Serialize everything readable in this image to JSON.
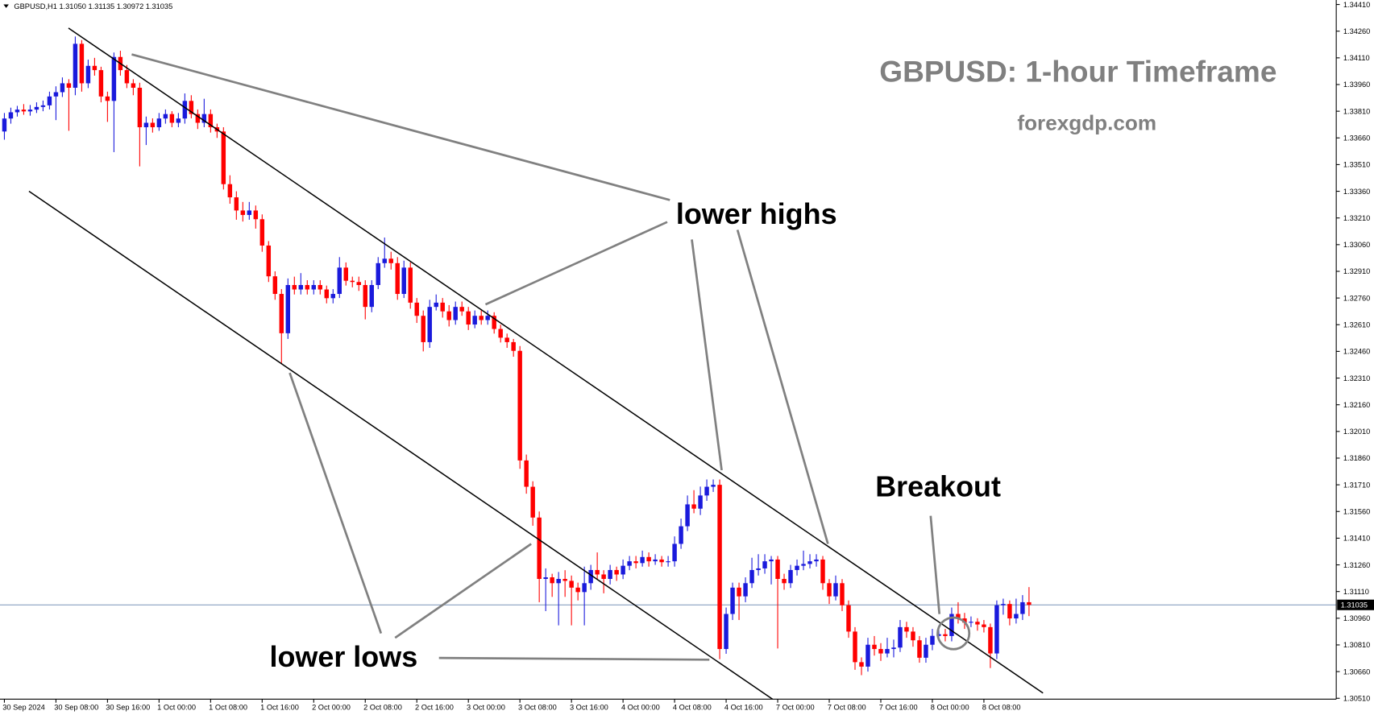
{
  "chart_data": {
    "type": "candlestick",
    "header": "GBPUSD,H1  1.31050 1.31135 1.30972 1.31035",
    "title": "GBPUSD: 1-hour Timeframe",
    "subtitle": "forexgdp.com",
    "annotations": [
      "lower highs",
      "lower lows",
      "Breakout"
    ],
    "up_color": "#1a1adc",
    "down_color": "#ff0000",
    "ylim": [
      1.30505,
      1.34435
    ],
    "yticks": [
      {
        "value": 1.3441,
        "label": "1.34410"
      },
      {
        "value": 1.3426,
        "label": "1.34260"
      },
      {
        "value": 1.3411,
        "label": "1.34110"
      },
      {
        "value": 1.3396,
        "label": "1.33960"
      },
      {
        "value": 1.3381,
        "label": "1.33810"
      },
      {
        "value": 1.3366,
        "label": "1.33660"
      },
      {
        "value": 1.3351,
        "label": "1.33510"
      },
      {
        "value": 1.3336,
        "label": "1.33360"
      },
      {
        "value": 1.3321,
        "label": "1.33210"
      },
      {
        "value": 1.3306,
        "label": "1.33060"
      },
      {
        "value": 1.3291,
        "label": "1.32910"
      },
      {
        "value": 1.3276,
        "label": "1.32760"
      },
      {
        "value": 1.3261,
        "label": "1.32610"
      },
      {
        "value": 1.3246,
        "label": "1.32460"
      },
      {
        "value": 1.3231,
        "label": "1.32310"
      },
      {
        "value": 1.3216,
        "label": "1.32160"
      },
      {
        "value": 1.3201,
        "label": "1.32010"
      },
      {
        "value": 1.3186,
        "label": "1.31860"
      },
      {
        "value": 1.3171,
        "label": "1.31710"
      },
      {
        "value": 1.3156,
        "label": "1.31560"
      },
      {
        "value": 1.3141,
        "label": "1.31410"
      },
      {
        "value": 1.3126,
        "label": "1.31260"
      },
      {
        "value": 1.3111,
        "label": "1.31110"
      },
      {
        "value": 1.3096,
        "label": "1.30960"
      },
      {
        "value": 1.3081,
        "label": "1.30810"
      },
      {
        "value": 1.3066,
        "label": "1.30660"
      },
      {
        "value": 1.3051,
        "label": "1.30510"
      }
    ],
    "last_price": {
      "value": 1.31035,
      "label": "1.31035"
    },
    "categories": [
      "30 Sep 2024",
      null,
      null,
      null,
      null,
      null,
      null,
      null,
      "30 Sep 08:00",
      null,
      null,
      null,
      null,
      null,
      null,
      null,
      "30 Sep 16:00",
      null,
      null,
      null,
      null,
      null,
      null,
      null,
      "1 Oct 00:00",
      null,
      null,
      null,
      null,
      null,
      null,
      null,
      "1 Oct 08:00",
      null,
      null,
      null,
      null,
      null,
      null,
      null,
      "1 Oct 16:00",
      null,
      null,
      null,
      null,
      null,
      null,
      null,
      "2 Oct 00:00",
      null,
      null,
      null,
      null,
      null,
      null,
      null,
      "2 Oct 08:00",
      null,
      null,
      null,
      null,
      null,
      null,
      null,
      "2 Oct 16:00",
      null,
      null,
      null,
      null,
      null,
      null,
      null,
      "3 Oct 00:00",
      null,
      null,
      null,
      null,
      null,
      null,
      null,
      "3 Oct 08:00",
      null,
      null,
      null,
      null,
      null,
      null,
      null,
      "3 Oct 16:00",
      null,
      null,
      null,
      null,
      null,
      null,
      null,
      "4 Oct 00:00",
      null,
      null,
      null,
      null,
      null,
      null,
      null,
      "4 Oct 08:00",
      null,
      null,
      null,
      null,
      null,
      null,
      null,
      "4 Oct 16:00",
      null,
      null,
      null,
      null,
      null,
      null,
      null,
      "7 Oct 00:00",
      null,
      null,
      null,
      null,
      null,
      null,
      null,
      "7 Oct 08:00",
      null,
      null,
      null,
      null,
      null,
      null,
      null,
      "7 Oct 16:00",
      null,
      null,
      null,
      null,
      null,
      null,
      null,
      "8 Oct 00:00",
      null,
      null,
      null,
      null,
      null,
      null,
      null,
      "8 Oct 08:00",
      null,
      null,
      null,
      null,
      null,
      null,
      null
    ],
    "ohlc": [
      [
        1.33696,
        1.338,
        1.3365,
        1.33769
      ],
      [
        1.33769,
        1.3383,
        1.3374,
        1.33804
      ],
      [
        1.33804,
        1.3384,
        1.3378,
        1.33819
      ],
      [
        1.33819,
        1.3385,
        1.3379,
        1.33809
      ],
      [
        1.33809,
        1.33845,
        1.33785,
        1.33819
      ],
      [
        1.33819,
        1.3386,
        1.338,
        1.33834
      ],
      [
        1.33834,
        1.3387,
        1.3381,
        1.33843
      ],
      [
        1.33843,
        1.3392,
        1.3382,
        1.33893
      ],
      [
        1.33893,
        1.3395,
        1.3376,
        1.33917
      ],
      [
        1.33917,
        1.34,
        1.3389,
        1.33967
      ],
      [
        1.33967,
        1.3399,
        1.337,
        1.33942
      ],
      [
        1.33942,
        1.3423,
        1.339,
        1.34189
      ],
      [
        1.34189,
        1.3421,
        1.3392,
        1.33967
      ],
      [
        1.33967,
        1.341,
        1.3394,
        1.34065
      ],
      [
        1.34065,
        1.3411,
        1.3401,
        1.34041
      ],
      [
        1.34041,
        1.3406,
        1.3386,
        1.33893
      ],
      [
        1.33893,
        1.3392,
        1.3375,
        1.33868
      ],
      [
        1.33868,
        1.3414,
        1.3358,
        1.34115
      ],
      [
        1.34115,
        1.3415,
        1.3401,
        1.34041
      ],
      [
        1.34041,
        1.3407,
        1.3394,
        1.33967
      ],
      [
        1.33967,
        1.3399,
        1.339,
        1.33942
      ],
      [
        1.33942,
        1.3397,
        1.335,
        1.3372
      ],
      [
        1.3372,
        1.3378,
        1.3362,
        1.33745
      ],
      [
        1.33745,
        1.3377,
        1.3369,
        1.3372
      ],
      [
        1.3372,
        1.338,
        1.337,
        1.33769
      ],
      [
        1.33769,
        1.3382,
        1.3374,
        1.33794
      ],
      [
        1.33794,
        1.3381,
        1.3372,
        1.33745
      ],
      [
        1.33745,
        1.338,
        1.3372,
        1.33769
      ],
      [
        1.33769,
        1.3391,
        1.3374,
        1.33868
      ],
      [
        1.33868,
        1.339,
        1.3377,
        1.33794
      ],
      [
        1.33794,
        1.3382,
        1.3371,
        1.33745
      ],
      [
        1.33745,
        1.3388,
        1.3372,
        1.33794
      ],
      [
        1.33794,
        1.3382,
        1.3369,
        1.3372
      ],
      [
        1.3372,
        1.3374,
        1.3366,
        1.33696
      ],
      [
        1.33696,
        1.3372,
        1.3337,
        1.334
      ],
      [
        1.334,
        1.3345,
        1.3329,
        1.33326
      ],
      [
        1.33326,
        1.3336,
        1.332,
        1.33252
      ],
      [
        1.33252,
        1.333,
        1.3319,
        1.33227
      ],
      [
        1.33227,
        1.333,
        1.332,
        1.33252
      ],
      [
        1.33252,
        1.3328,
        1.3315,
        1.33203
      ],
      [
        1.33203,
        1.3323,
        1.3302,
        1.33055
      ],
      [
        1.33055,
        1.3308,
        1.3285,
        1.32882
      ],
      [
        1.32882,
        1.3291,
        1.3275,
        1.32783
      ],
      [
        1.32783,
        1.3281,
        1.3239,
        1.32562
      ],
      [
        1.32562,
        1.3287,
        1.3253,
        1.32833
      ],
      [
        1.32833,
        1.3288,
        1.3278,
        1.32808
      ],
      [
        1.32808,
        1.329,
        1.3278,
        1.32833
      ],
      [
        1.32833,
        1.3286,
        1.3278,
        1.32808
      ],
      [
        1.32808,
        1.3286,
        1.3278,
        1.32833
      ],
      [
        1.32833,
        1.3286,
        1.3278,
        1.32808
      ],
      [
        1.32808,
        1.3283,
        1.3273,
        1.32759
      ],
      [
        1.32759,
        1.3281,
        1.3273,
        1.32783
      ],
      [
        1.32783,
        1.3299,
        1.3276,
        1.32931
      ],
      [
        1.32931,
        1.3296,
        1.3283,
        1.32857
      ],
      [
        1.32857,
        1.3288,
        1.3282,
        1.3285
      ],
      [
        1.3285,
        1.3288,
        1.328,
        1.32833
      ],
      [
        1.32833,
        1.3286,
        1.3264,
        1.3271
      ],
      [
        1.3271,
        1.3286,
        1.3268,
        1.32833
      ],
      [
        1.32833,
        1.3299,
        1.3281,
        1.32956
      ],
      [
        1.32956,
        1.331,
        1.3293,
        1.32981
      ],
      [
        1.32981,
        1.3302,
        1.3292,
        1.32956
      ],
      [
        1.32956,
        1.3299,
        1.3275,
        1.32783
      ],
      [
        1.32783,
        1.3297,
        1.3276,
        1.32931
      ],
      [
        1.32931,
        1.3296,
        1.327,
        1.32734
      ],
      [
        1.32734,
        1.3276,
        1.3262,
        1.3266
      ],
      [
        1.3266,
        1.3269,
        1.3246,
        1.32512
      ],
      [
        1.32512,
        1.3275,
        1.3248,
        1.3271
      ],
      [
        1.3271,
        1.3278,
        1.3269,
        1.32734
      ],
      [
        1.32734,
        1.3276,
        1.3265,
        1.32685
      ],
      [
        1.32685,
        1.3272,
        1.326,
        1.32636
      ],
      [
        1.32636,
        1.3274,
        1.3261,
        1.3271
      ],
      [
        1.3271,
        1.3274,
        1.3266,
        1.32685
      ],
      [
        1.32685,
        1.3271,
        1.3258,
        1.32611
      ],
      [
        1.32611,
        1.3269,
        1.3259,
        1.3266
      ],
      [
        1.3266,
        1.3269,
        1.3261,
        1.32636
      ],
      [
        1.32636,
        1.3269,
        1.3261,
        1.3266
      ],
      [
        1.3266,
        1.3268,
        1.3256,
        1.32586
      ],
      [
        1.32586,
        1.3261,
        1.3251,
        1.32537
      ],
      [
        1.32537,
        1.3256,
        1.3248,
        1.32512
      ],
      [
        1.32512,
        1.3253,
        1.3243,
        1.32463
      ],
      [
        1.32463,
        1.3249,
        1.318,
        1.31847
      ],
      [
        1.31847,
        1.3188,
        1.3166,
        1.31699
      ],
      [
        1.31699,
        1.3173,
        1.3148,
        1.31526
      ],
      [
        1.31526,
        1.3156,
        1.3105,
        1.31181
      ],
      [
        1.31181,
        1.3124,
        1.31,
        1.3119
      ],
      [
        1.3119,
        1.3121,
        1.3108,
        1.31157
      ],
      [
        1.31157,
        1.3122,
        1.3092,
        1.31181
      ],
      [
        1.31181,
        1.3123,
        1.3108,
        1.3117
      ],
      [
        1.3117,
        1.312,
        1.3092,
        1.31132
      ],
      [
        1.31132,
        1.3116,
        1.3106,
        1.31107
      ],
      [
        1.31107,
        1.3125,
        1.3092,
        1.31157
      ],
      [
        1.31157,
        1.3126,
        1.3112,
        1.31231
      ],
      [
        1.31231,
        1.3133,
        1.3118,
        1.31206
      ],
      [
        1.31206,
        1.3123,
        1.311,
        1.31181
      ],
      [
        1.31181,
        1.3126,
        1.3115,
        1.31231
      ],
      [
        1.31231,
        1.3125,
        1.3117,
        1.31206
      ],
      [
        1.31206,
        1.3129,
        1.3118,
        1.31255
      ],
      [
        1.31255,
        1.3131,
        1.3123,
        1.3128
      ],
      [
        1.3128,
        1.3131,
        1.3124,
        1.3127
      ],
      [
        1.3127,
        1.3134,
        1.3125,
        1.31304
      ],
      [
        1.31304,
        1.3133,
        1.3125,
        1.3128
      ],
      [
        1.3128,
        1.3132,
        1.3126,
        1.3129
      ],
      [
        1.3129,
        1.3131,
        1.3125,
        1.31275
      ],
      [
        1.31275,
        1.3131,
        1.3125,
        1.3128
      ],
      [
        1.3128,
        1.3142,
        1.3125,
        1.31378
      ],
      [
        1.31378,
        1.3152,
        1.3135,
        1.31477
      ],
      [
        1.31477,
        1.3165,
        1.3145,
        1.316
      ],
      [
        1.316,
        1.3168,
        1.3155,
        1.31576
      ],
      [
        1.31576,
        1.317,
        1.3154,
        1.3165
      ],
      [
        1.3165,
        1.3174,
        1.3162,
        1.31699
      ],
      [
        1.31699,
        1.3174,
        1.3167,
        1.3171
      ],
      [
        1.3171,
        1.3174,
        1.3073,
        1.30787
      ],
      [
        1.30787,
        1.3102,
        1.3076,
        1.30984
      ],
      [
        1.30984,
        1.3116,
        1.3095,
        1.31132
      ],
      [
        1.31132,
        1.3116,
        1.3095,
        1.31083
      ],
      [
        1.31083,
        1.3119,
        1.3105,
        1.31157
      ],
      [
        1.31157,
        1.313,
        1.3113,
        1.31231
      ],
      [
        1.31231,
        1.3132,
        1.312,
        1.3124
      ],
      [
        1.3124,
        1.3132,
        1.3121,
        1.3128
      ],
      [
        1.3128,
        1.3131,
        1.3115,
        1.3129
      ],
      [
        1.3129,
        1.3131,
        1.3079,
        1.31181
      ],
      [
        1.31181,
        1.3121,
        1.3112,
        1.31157
      ],
      [
        1.31157,
        1.3126,
        1.3113,
        1.31231
      ],
      [
        1.31231,
        1.3129,
        1.312,
        1.31255
      ],
      [
        1.31255,
        1.3134,
        1.3123,
        1.31265
      ],
      [
        1.31265,
        1.3132,
        1.3124,
        1.3128
      ],
      [
        1.3128,
        1.3132,
        1.3125,
        1.3129
      ],
      [
        1.3129,
        1.3131,
        1.3112,
        1.31157
      ],
      [
        1.31157,
        1.3118,
        1.3104,
        1.31083
      ],
      [
        1.31083,
        1.312,
        1.3106,
        1.31157
      ],
      [
        1.31157,
        1.3118,
        1.31,
        1.31033
      ],
      [
        1.31033,
        1.3106,
        1.3085,
        1.30885
      ],
      [
        1.30885,
        1.3091,
        1.3067,
        1.30713
      ],
      [
        1.30713,
        1.3074,
        1.3064,
        1.30688
      ],
      [
        1.30688,
        1.3085,
        1.3066,
        1.30811
      ],
      [
        1.30811,
        1.3086,
        1.3075,
        1.30787
      ],
      [
        1.30787,
        1.3082,
        1.3072,
        1.30762
      ],
      [
        1.30762,
        1.3085,
        1.3074,
        1.30787
      ],
      [
        1.30787,
        1.3084,
        1.3074,
        1.30795
      ],
      [
        1.30795,
        1.3095,
        1.3077,
        1.3091
      ],
      [
        1.3091,
        1.3094,
        1.3085,
        1.30885
      ],
      [
        1.30885,
        1.3091,
        1.308,
        1.30836
      ],
      [
        1.30836,
        1.3086,
        1.3071,
        1.30738
      ],
      [
        1.30738,
        1.3085,
        1.3071,
        1.30811
      ],
      [
        1.30811,
        1.309,
        1.3078,
        1.30861
      ],
      [
        1.30861,
        1.3092,
        1.3083,
        1.3087
      ],
      [
        1.3087,
        1.309,
        1.3083,
        1.3086
      ],
      [
        1.3086,
        1.3102,
        1.3083,
        1.30984
      ],
      [
        1.30984,
        1.3105,
        1.3093,
        1.30959
      ],
      [
        1.30959,
        1.3099,
        1.309,
        1.30935
      ],
      [
        1.30935,
        1.3097,
        1.3091,
        1.3094
      ],
      [
        1.3094,
        1.3096,
        1.3089,
        1.30925
      ],
      [
        1.30925,
        1.3095,
        1.3088,
        1.3091
      ],
      [
        1.3091,
        1.3093,
        1.3068,
        1.30762
      ],
      [
        1.30762,
        1.3106,
        1.3073,
        1.31033
      ],
      [
        1.31033,
        1.3107,
        1.3098,
        1.3104
      ],
      [
        1.3104,
        1.3106,
        1.3092,
        1.30959
      ],
      [
        1.30959,
        1.3107,
        1.3093,
        1.30984
      ],
      [
        1.30984,
        1.3109,
        1.3095,
        1.3105
      ],
      [
        1.3105,
        1.31135,
        1.30972,
        1.31035
      ]
    ]
  }
}
